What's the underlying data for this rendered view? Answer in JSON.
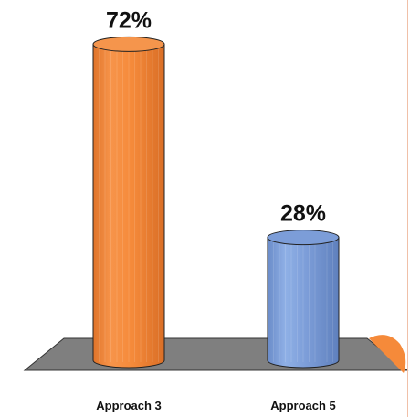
{
  "chart_data": {
    "type": "bar",
    "title": "",
    "xlabel": "",
    "ylabel": "",
    "categories": [
      "Approach 3",
      "Approach 5"
    ],
    "values": [
      72,
      28
    ],
    "data_labels": [
      "72%",
      "28%"
    ],
    "ylim": [
      0,
      100
    ],
    "grid": false,
    "legend": "none",
    "style": "3d-cylinder",
    "colors": {
      "Approach 3": "#F58A3A",
      "Approach 5": "#7C9DD8",
      "floor": "#7f7f7f"
    }
  }
}
